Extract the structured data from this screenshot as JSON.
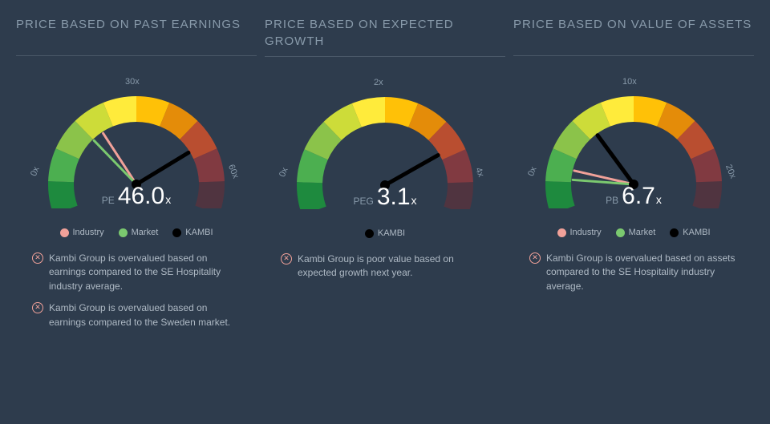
{
  "panels": [
    {
      "title": "PRICE BASED ON PAST EARNINGS",
      "metric_label": "PE",
      "metric_value": "46.0",
      "ticks": [
        "0x",
        "30x",
        "60x"
      ],
      "max": 60,
      "needles": [
        {
          "value": 21,
          "color": "#f1a199",
          "width": 3
        },
        {
          "value": 18,
          "color": "#7bc96f",
          "width": 3
        },
        {
          "value": 46,
          "color": "#000000",
          "width": 5
        }
      ],
      "legend": [
        "industry",
        "market",
        "kambi"
      ],
      "notes": [
        "Kambi Group is overvalued based on earnings compared to the SE Hospitality industry average.",
        "Kambi Group is overvalued based on earnings compared to the Sweden market."
      ]
    },
    {
      "title": "PRICE BASED ON EXPECTED GROWTH",
      "metric_label": "PEG",
      "metric_value": "3.1",
      "ticks": [
        "0x",
        "2x",
        "4x"
      ],
      "max": 4,
      "needles": [
        {
          "value": 3.1,
          "color": "#000000",
          "width": 5
        }
      ],
      "legend": [
        "kambi"
      ],
      "notes": [
        "Kambi Group is poor value based on expected growth next year."
      ]
    },
    {
      "title": "PRICE BASED ON VALUE OF ASSETS",
      "metric_label": "PB",
      "metric_value": "6.7",
      "ticks": [
        "0x",
        "10x",
        "20x"
      ],
      "max": 20,
      "needles": [
        {
          "value": 3.0,
          "color": "#f1a199",
          "width": 3
        },
        {
          "value": 2.2,
          "color": "#7bc96f",
          "width": 3
        },
        {
          "value": 6.7,
          "color": "#000000",
          "width": 5
        }
      ],
      "legend": [
        "industry",
        "market",
        "kambi"
      ],
      "notes": [
        "Kambi Group is overvalued based on assets compared to the SE Hospitality industry average."
      ]
    }
  ],
  "arc": {
    "segments": 10,
    "colors": [
      "#1e8a3e",
      "#4caf50",
      "#8bc34a",
      "#cddc39",
      "#ffeb3b",
      "#ffc107",
      "#ff9800",
      "#ff5722",
      "#e53935",
      "#b71c1c"
    ],
    "fade_start": 0.6
  },
  "legend_labels": {
    "industry": "Industry",
    "market": "Market",
    "kambi": "KAMBI"
  }
}
